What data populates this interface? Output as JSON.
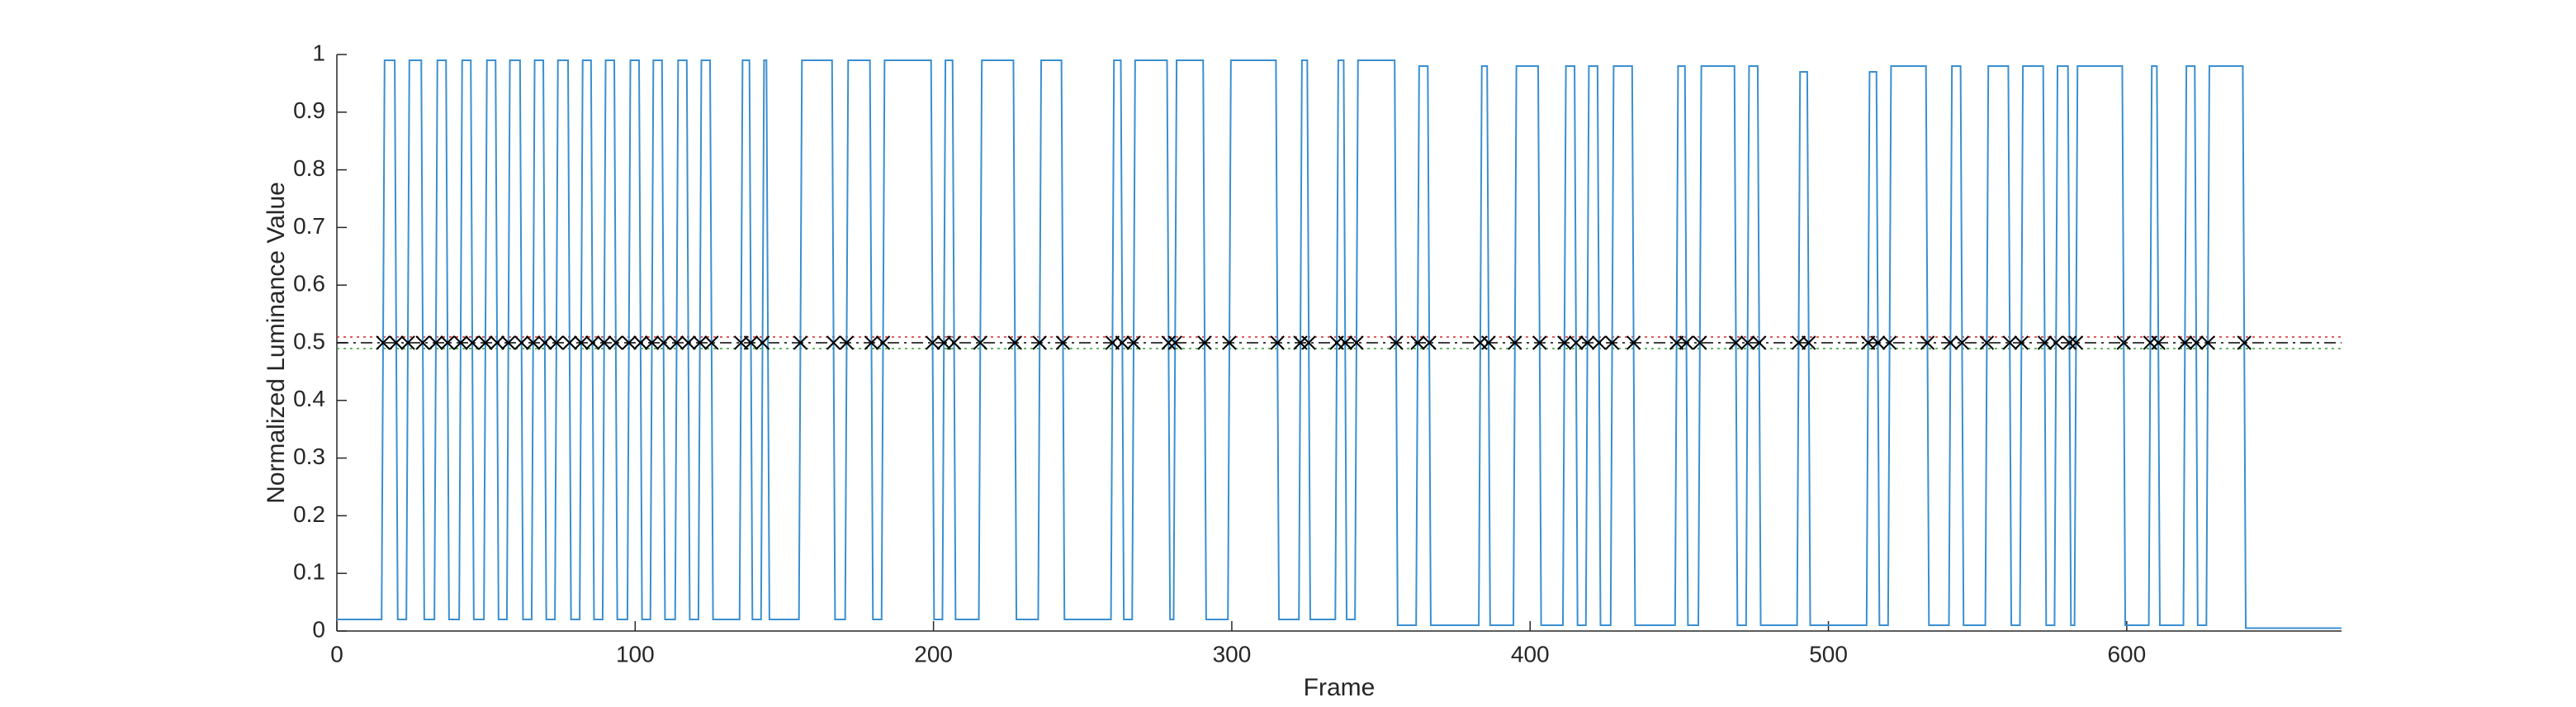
{
  "chart_data": {
    "type": "line",
    "xlabel": "Frame",
    "ylabel": "Normalized Luminance Value",
    "xlim": [
      0,
      672
    ],
    "ylim": [
      0,
      1
    ],
    "xticks": [
      0,
      100,
      200,
      300,
      400,
      500,
      600
    ],
    "yticks": [
      0,
      0.1,
      0.2,
      0.3,
      0.4,
      0.5,
      0.6,
      0.7,
      0.8,
      0.9,
      1
    ],
    "hlines": [
      {
        "value": 0.5,
        "color": "#000000",
        "style": "dashdot"
      },
      {
        "value": 0.51,
        "color": "#d62728",
        "style": "dotted"
      },
      {
        "value": 0.49,
        "color": "#2ca02c",
        "style": "dotted"
      }
    ],
    "series": [
      {
        "type": "line",
        "color": "#3a8fd0",
        "x": [
          0,
          15,
          16,
          19.4,
          20.4,
          23.3,
          24.3,
          28.3,
          29.3,
          32.7,
          33.7,
          36.6,
          37.6,
          41,
          42,
          44.9,
          45.9,
          49.3,
          50.3,
          53.2,
          54.2,
          57,
          58,
          61.4,
          62.4,
          65.3,
          66.3,
          69.2,
          70.2,
          73.1,
          74.1,
          77.5,
          78.5,
          81.4,
          82.4,
          85.2,
          86.2,
          89.1,
          90.1,
          93,
          94,
          97.4,
          98.4,
          101.3,
          102.3,
          105.1,
          106.1,
          109,
          110,
          113.4,
          114.4,
          117.3,
          118.3,
          121.2,
          122.2,
          125.1,
          126.1,
          135,
          136,
          138.3,
          139.3,
          142.2,
          143.2,
          144,
          145,
          154.9,
          155.9,
          166,
          167,
          170.4,
          171.4,
          178.7,
          179.7,
          182.6,
          183.6,
          199.2,
          200.2,
          203,
          204,
          206.4,
          207.4,
          215.2,
          216.2,
          226.8,
          227.8,
          235.1,
          236.1,
          242.9,
          243.9,
          259.5,
          260.5,
          262.8,
          263.8,
          266.6,
          267.6,
          278.3,
          279.3,
          280.5,
          281.5,
          290.4,
          291.4,
          298.7,
          299.7,
          314.8,
          315.8,
          322.5,
          323.5,
          325.3,
          326.3,
          334.7,
          335.7,
          337.5,
          338.5,
          341.3,
          342.3,
          354.6,
          355.6,
          361.8,
          362.8,
          365.7,
          366.7,
          382.8,
          383.8,
          385.6,
          386.6,
          394.4,
          395.4,
          402.7,
          403.7,
          411,
          412,
          414.9,
          415.9,
          418.7,
          419.7,
          422.6,
          423.6,
          427,
          428,
          434.2,
          435.2,
          448.6,
          449.6,
          451.9,
          452.9,
          456.4,
          457.4,
          468.5,
          469.5,
          472.4,
          473.4,
          476.3,
          477.3,
          489.5,
          490.5,
          492.9,
          493.9,
          512.8,
          513.8,
          516.1,
          517.1,
          520,
          521,
          532.7,
          533.7,
          540.4,
          541.4,
          544.3,
          545.3,
          552.6,
          553.6,
          560.3,
          561.3,
          564.2,
          565.2,
          572,
          573,
          575.8,
          576.8,
          580.3,
          581.3,
          582.5,
          583.5,
          598.5,
          599.5,
          607.4,
          608.4,
          610.1,
          611.1,
          619,
          620,
          622.8,
          623.8,
          626.7,
          627.7,
          638.9,
          639.9,
          672
        ],
        "values": [
          0.02,
          0.02,
          0.99,
          0.99,
          0.02,
          0.02,
          0.99,
          0.99,
          0.02,
          0.02,
          0.99,
          0.99,
          0.02,
          0.02,
          0.99,
          0.99,
          0.02,
          0.02,
          0.99,
          0.99,
          0.02,
          0.02,
          0.99,
          0.99,
          0.02,
          0.02,
          0.99,
          0.99,
          0.02,
          0.02,
          0.99,
          0.99,
          0.02,
          0.02,
          0.99,
          0.99,
          0.02,
          0.02,
          0.99,
          0.99,
          0.02,
          0.02,
          0.99,
          0.99,
          0.02,
          0.02,
          0.99,
          0.99,
          0.02,
          0.02,
          0.99,
          0.99,
          0.02,
          0.02,
          0.99,
          0.99,
          0.02,
          0.02,
          0.99,
          0.99,
          0.02,
          0.02,
          0.99,
          0.99,
          0.02,
          0.02,
          0.99,
          0.99,
          0.02,
          0.02,
          0.99,
          0.99,
          0.02,
          0.02,
          0.99,
          0.99,
          0.02,
          0.02,
          0.99,
          0.99,
          0.02,
          0.02,
          0.99,
          0.99,
          0.02,
          0.02,
          0.99,
          0.99,
          0.02,
          0.02,
          0.99,
          0.99,
          0.02,
          0.02,
          0.99,
          0.99,
          0.02,
          0.02,
          0.99,
          0.99,
          0.02,
          0.02,
          0.99,
          0.99,
          0.02,
          0.02,
          0.99,
          0.99,
          0.02,
          0.02,
          0.99,
          0.99,
          0.02,
          0.02,
          0.99,
          0.99,
          0.01,
          0.01,
          0.98,
          0.98,
          0.01,
          0.01,
          0.98,
          0.98,
          0.01,
          0.01,
          0.98,
          0.98,
          0.01,
          0.01,
          0.98,
          0.98,
          0.01,
          0.01,
          0.98,
          0.98,
          0.01,
          0.01,
          0.98,
          0.98,
          0.01,
          0.01,
          0.98,
          0.98,
          0.01,
          0.01,
          0.98,
          0.98,
          0.01,
          0.01,
          0.98,
          0.98,
          0.01,
          0.01,
          0.97,
          0.97,
          0.01,
          0.01,
          0.97,
          0.97,
          0.01,
          0.01,
          0.98,
          0.98,
          0.01,
          0.01,
          0.98,
          0.98,
          0.01,
          0.01,
          0.98,
          0.98,
          0.01,
          0.01,
          0.98,
          0.98,
          0.01,
          0.01,
          0.98,
          0.98,
          0.01,
          0.01,
          0.98,
          0.98,
          0.01,
          0.01,
          0.98,
          0.98,
          0.01,
          0.01,
          0.98,
          0.98,
          0.01,
          0.01,
          0.98,
          0.98,
          0.005,
          0.005
        ]
      },
      {
        "type": "scatter",
        "color": "#000000",
        "x": [
          15.5,
          19.9,
          23.8,
          28.8,
          33.2,
          37.1,
          41.5,
          45.4,
          49.8,
          53.7,
          57.5,
          61.9,
          65.8,
          69.7,
          73.6,
          78,
          81.9,
          85.7,
          89.6,
          93.5,
          97.9,
          101.8,
          105.6,
          109.5,
          113.9,
          117.8,
          121.7,
          125.6,
          135.5,
          138.8,
          142.7,
          155.4,
          166.5,
          170.9,
          179.2,
          183.1,
          199.7,
          203.5,
          206.9,
          215.7,
          227.3,
          235.6,
          243.4,
          260,
          263.3,
          267.1,
          278.8,
          281,
          290.9,
          299.2,
          315.3,
          323,
          325.8,
          335.2,
          338,
          341.8,
          355.1,
          362.3,
          366.2,
          383.3,
          386.1,
          394.9,
          403.2,
          411.5,
          415.4,
          419.2,
          423.1,
          427.5,
          434.7,
          449.1,
          452.4,
          456.9,
          469,
          472.9,
          476.8,
          490,
          493.4,
          513.3,
          516.6,
          520.5,
          533.2,
          540.9,
          544.8,
          553.1,
          560.8,
          564.7,
          572.5,
          576.3,
          580.8,
          583,
          599,
          607.9,
          610.6,
          619.5,
          623.3,
          627.2,
          639.4
        ],
        "values": [
          0.5,
          0.5,
          0.5,
          0.5,
          0.5,
          0.5,
          0.5,
          0.5,
          0.5,
          0.5,
          0.5,
          0.5,
          0.5,
          0.5,
          0.5,
          0.5,
          0.5,
          0.5,
          0.5,
          0.5,
          0.5,
          0.5,
          0.5,
          0.5,
          0.5,
          0.5,
          0.5,
          0.5,
          0.5,
          0.5,
          0.5,
          0.5,
          0.5,
          0.5,
          0.5,
          0.5,
          0.5,
          0.5,
          0.5,
          0.5,
          0.5,
          0.5,
          0.5,
          0.5,
          0.5,
          0.5,
          0.5,
          0.5,
          0.5,
          0.5,
          0.5,
          0.5,
          0.5,
          0.5,
          0.5,
          0.5,
          0.5,
          0.5,
          0.5,
          0.5,
          0.5,
          0.5,
          0.5,
          0.5,
          0.5,
          0.5,
          0.5,
          0.5,
          0.5,
          0.5,
          0.5,
          0.5,
          0.5,
          0.5,
          0.5,
          0.5,
          0.5,
          0.5,
          0.5,
          0.5,
          0.5,
          0.5,
          0.5,
          0.5,
          0.5,
          0.5,
          0.5,
          0.5,
          0.5,
          0.5,
          0.5,
          0.5,
          0.5,
          0.5,
          0.5,
          0.5,
          0.5
        ]
      }
    ]
  }
}
